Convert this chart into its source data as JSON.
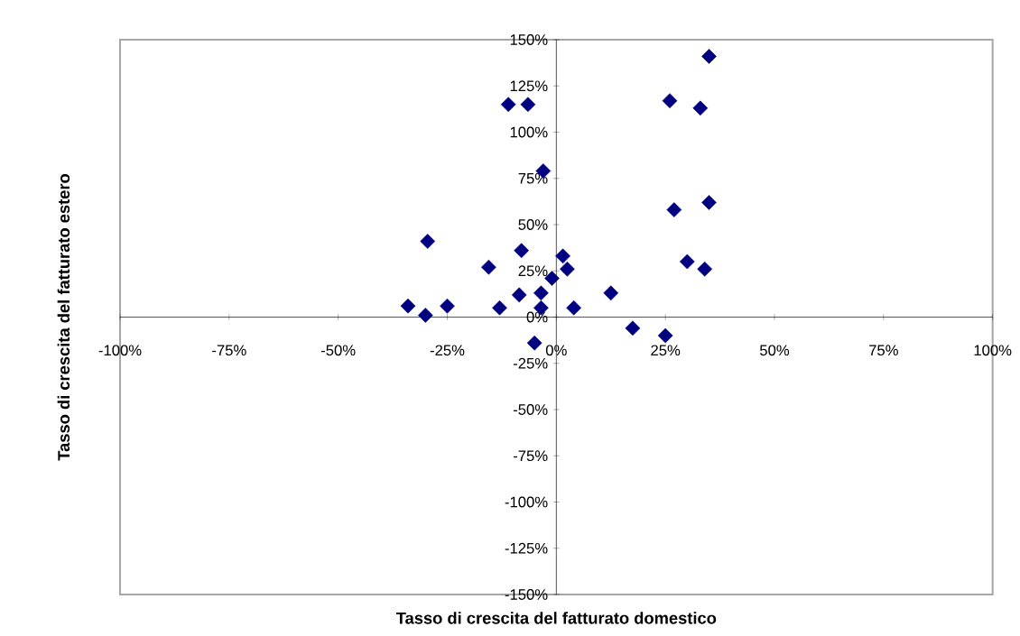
{
  "chart_data": {
    "type": "scatter",
    "xlabel": "Tasso di crescita del fatturato domestico",
    "ylabel": "Tasso di crescita del fatturato estero",
    "marker": "diamond",
    "grid": false,
    "xlim": [
      -100,
      100
    ],
    "ylim": [
      -150,
      150
    ],
    "xticks": [
      {
        "value": -100,
        "label": "-100%"
      },
      {
        "value": -75,
        "label": "-75%"
      },
      {
        "value": -50,
        "label": "-50%"
      },
      {
        "value": -25,
        "label": "-25%"
      },
      {
        "value": 0,
        "label": "0%"
      },
      {
        "value": 25,
        "label": "25%"
      },
      {
        "value": 50,
        "label": "50%"
      },
      {
        "value": 75,
        "label": "75%"
      },
      {
        "value": 100,
        "label": "100%"
      }
    ],
    "yticks": [
      {
        "value": -150,
        "label": "-150%"
      },
      {
        "value": -125,
        "label": "-125%"
      },
      {
        "value": -100,
        "label": "-100%"
      },
      {
        "value": -75,
        "label": "-75%"
      },
      {
        "value": -50,
        "label": "-50%"
      },
      {
        "value": -25,
        "label": "-25%"
      },
      {
        "value": 0,
        "label": "0%"
      },
      {
        "value": 25,
        "label": "25%"
      },
      {
        "value": 50,
        "label": "50%"
      },
      {
        "value": 75,
        "label": "75%"
      },
      {
        "value": 100,
        "label": "100%"
      },
      {
        "value": 125,
        "label": "125%"
      },
      {
        "value": 150,
        "label": "150%"
      }
    ],
    "series": [
      {
        "color": "#000080",
        "x": [
          35,
          26,
          33,
          -11,
          -6.5,
          -3,
          27,
          35,
          -29.5,
          -8,
          1.5,
          -15.5,
          2.5,
          30,
          34,
          -1,
          -8.5,
          -3.5,
          12.5,
          -34,
          -30,
          -25,
          -13,
          -3.5,
          4,
          17.5,
          25,
          -5
        ],
        "values": [
          141,
          117,
          113,
          115,
          115,
          79,
          58,
          62,
          41,
          36,
          33,
          27,
          26,
          30,
          26,
          21,
          12,
          13,
          13,
          6,
          1,
          6,
          5,
          5,
          5,
          -6,
          -10,
          -14
        ]
      }
    ]
  }
}
